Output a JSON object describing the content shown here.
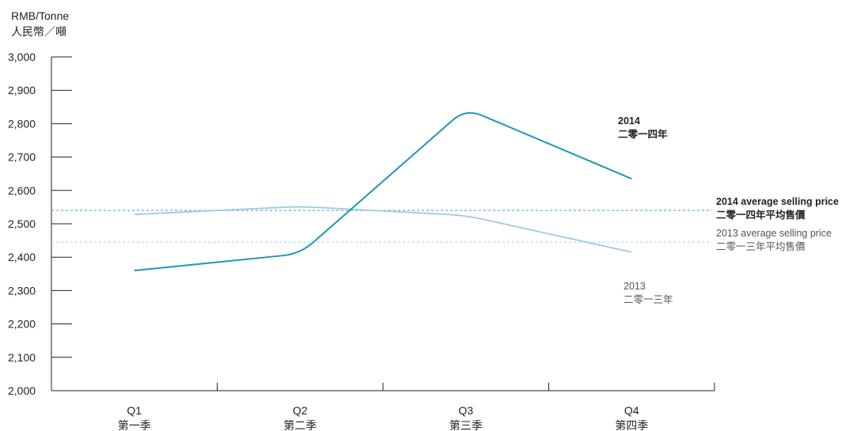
{
  "chart_data": {
    "type": "line",
    "ylabel": [
      "RMB/Tonne",
      "人民幣／噸"
    ],
    "ylim": [
      2000,
      3000
    ],
    "yticks": [
      "2,000",
      "2,100",
      "2,200",
      "2,300",
      "2,400",
      "2,500",
      "2,600",
      "2,700",
      "2,800",
      "2,900",
      "3,000"
    ],
    "categories": [
      {
        "en": "Q1",
        "zh": "第一季"
      },
      {
        "en": "Q2",
        "zh": "第二季"
      },
      {
        "en": "Q3",
        "zh": "第三季"
      },
      {
        "en": "Q4",
        "zh": "第四季"
      }
    ],
    "series": [
      {
        "name": "2014",
        "name_zh": "二零一四年",
        "color": "#1f95b8",
        "values": [
          2360,
          2410,
          2845,
          2635
        ]
      },
      {
        "name": "2013",
        "name_zh": "二零一三年",
        "color": "#9ecadf",
        "values": [
          2528,
          2552,
          2525,
          2415
        ]
      }
    ],
    "reference_lines": [
      {
        "name": "2014 average selling price",
        "name_zh": "二零一四年平均售價",
        "value": 2540,
        "color": "#5fb0d0"
      },
      {
        "name": "2013 average selling price",
        "name_zh": "二零一三年平均售價",
        "value": 2445,
        "color": "#a8d6e6"
      }
    ],
    "grid": false,
    "legend": "inline labels at right"
  }
}
